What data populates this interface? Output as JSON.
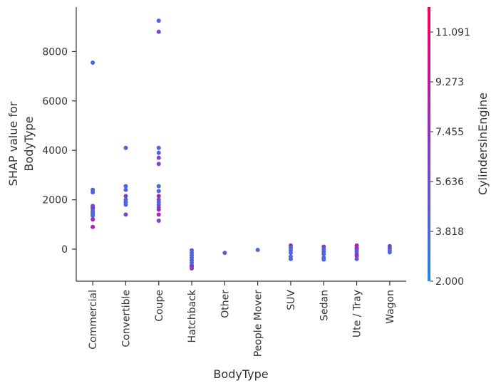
{
  "chart_data": {
    "type": "scatter",
    "xlabel": "BodyType",
    "ylabel_lines": [
      "SHAP value for",
      "BodyType"
    ],
    "categories": [
      "Commercial",
      "Convertible",
      "Coupe",
      "Hatchback",
      "Other",
      "People Mover",
      "SUV",
      "Sedan",
      "Ute / Tray",
      "Wagon"
    ],
    "yticks": [
      0,
      2000,
      4000,
      6000,
      8000
    ],
    "ylim": [
      -1300,
      9800
    ],
    "colorbar": {
      "label": "CylindersinEngine",
      "min": 2.0,
      "max": 12.0,
      "ticks": [
        "2.000",
        "3.818",
        "5.636",
        "7.455",
        "9.273",
        "11.091"
      ],
      "colors": [
        "#1e88e5",
        "#5b5cd5",
        "#8a38be",
        "#c0189d",
        "#ff0052"
      ]
    },
    "grid": false,
    "points": [
      {
        "cat": "Commercial",
        "y": 7550,
        "c": 4
      },
      {
        "cat": "Commercial",
        "y": 2400,
        "c": 4
      },
      {
        "cat": "Commercial",
        "y": 2300,
        "c": 4
      },
      {
        "cat": "Commercial",
        "y": 1750,
        "c": 6
      },
      {
        "cat": "Commercial",
        "y": 1700,
        "c": 4
      },
      {
        "cat": "Commercial",
        "y": 1650,
        "c": 7
      },
      {
        "cat": "Commercial",
        "y": 1550,
        "c": 4
      },
      {
        "cat": "Commercial",
        "y": 1500,
        "c": 4
      },
      {
        "cat": "Commercial",
        "y": 1450,
        "c": 4
      },
      {
        "cat": "Commercial",
        "y": 1400,
        "c": 4
      },
      {
        "cat": "Commercial",
        "y": 1350,
        "c": 4
      },
      {
        "cat": "Commercial",
        "y": 1200,
        "c": 8
      },
      {
        "cat": "Commercial",
        "y": 900,
        "c": 8
      },
      {
        "cat": "Convertible",
        "y": 4100,
        "c": 4
      },
      {
        "cat": "Convertible",
        "y": 2550,
        "c": 4
      },
      {
        "cat": "Convertible",
        "y": 2400,
        "c": 4
      },
      {
        "cat": "Convertible",
        "y": 2150,
        "c": 6
      },
      {
        "cat": "Convertible",
        "y": 2000,
        "c": 4
      },
      {
        "cat": "Convertible",
        "y": 1900,
        "c": 4
      },
      {
        "cat": "Convertible",
        "y": 1800,
        "c": 4
      },
      {
        "cat": "Convertible",
        "y": 1400,
        "c": 6
      },
      {
        "cat": "Coupe",
        "y": 9250,
        "c": 4
      },
      {
        "cat": "Coupe",
        "y": 8800,
        "c": 6
      },
      {
        "cat": "Coupe",
        "y": 4100,
        "c": 4
      },
      {
        "cat": "Coupe",
        "y": 3900,
        "c": 4
      },
      {
        "cat": "Coupe",
        "y": 3700,
        "c": 6
      },
      {
        "cat": "Coupe",
        "y": 3450,
        "c": 6
      },
      {
        "cat": "Coupe",
        "y": 2550,
        "c": 4
      },
      {
        "cat": "Coupe",
        "y": 2350,
        "c": 4
      },
      {
        "cat": "Coupe",
        "y": 2150,
        "c": 8
      },
      {
        "cat": "Coupe",
        "y": 2000,
        "c": 6
      },
      {
        "cat": "Coupe",
        "y": 1900,
        "c": 4
      },
      {
        "cat": "Coupe",
        "y": 1800,
        "c": 4
      },
      {
        "cat": "Coupe",
        "y": 1700,
        "c": 6
      },
      {
        "cat": "Coupe",
        "y": 1600,
        "c": 8
      },
      {
        "cat": "Coupe",
        "y": 1400,
        "c": 8
      },
      {
        "cat": "Coupe",
        "y": 1150,
        "c": 6
      },
      {
        "cat": "Hatchback",
        "y": -50,
        "c": 4
      },
      {
        "cat": "Hatchback",
        "y": -150,
        "c": 4
      },
      {
        "cat": "Hatchback",
        "y": -250,
        "c": 4
      },
      {
        "cat": "Hatchback",
        "y": -350,
        "c": 4
      },
      {
        "cat": "Hatchback",
        "y": -450,
        "c": 4
      },
      {
        "cat": "Hatchback",
        "y": -550,
        "c": 4
      },
      {
        "cat": "Hatchback",
        "y": -650,
        "c": 4
      },
      {
        "cat": "Hatchback",
        "y": -700,
        "c": 8
      },
      {
        "cat": "Hatchback",
        "y": -780,
        "c": 6
      },
      {
        "cat": "Other",
        "y": -150,
        "c": 5
      },
      {
        "cat": "People Mover",
        "y": -30,
        "c": 4
      },
      {
        "cat": "SUV",
        "y": 150,
        "c": 6
      },
      {
        "cat": "SUV",
        "y": 50,
        "c": 4
      },
      {
        "cat": "SUV",
        "y": -50,
        "c": 4
      },
      {
        "cat": "SUV",
        "y": -150,
        "c": 4
      },
      {
        "cat": "SUV",
        "y": -300,
        "c": 4
      },
      {
        "cat": "SUV",
        "y": -400,
        "c": 4
      },
      {
        "cat": "Sedan",
        "y": 100,
        "c": 6
      },
      {
        "cat": "Sedan",
        "y": 0,
        "c": 4
      },
      {
        "cat": "Sedan",
        "y": -100,
        "c": 4
      },
      {
        "cat": "Sedan",
        "y": -200,
        "c": 4
      },
      {
        "cat": "Sedan",
        "y": -350,
        "c": 4
      },
      {
        "cat": "Sedan",
        "y": -420,
        "c": 4
      },
      {
        "cat": "Ute / Tray",
        "y": 150,
        "c": 8
      },
      {
        "cat": "Ute / Tray",
        "y": 50,
        "c": 8
      },
      {
        "cat": "Ute / Tray",
        "y": -20,
        "c": 6
      },
      {
        "cat": "Ute / Tray",
        "y": -100,
        "c": 4
      },
      {
        "cat": "Ute / Tray",
        "y": -200,
        "c": 6
      },
      {
        "cat": "Ute / Tray",
        "y": -280,
        "c": 8
      },
      {
        "cat": "Ute / Tray",
        "y": -400,
        "c": 4
      },
      {
        "cat": "Wagon",
        "y": 120,
        "c": 6
      },
      {
        "cat": "Wagon",
        "y": 30,
        "c": 6
      },
      {
        "cat": "Wagon",
        "y": -50,
        "c": 4
      },
      {
        "cat": "Wagon",
        "y": -130,
        "c": 4
      }
    ]
  }
}
